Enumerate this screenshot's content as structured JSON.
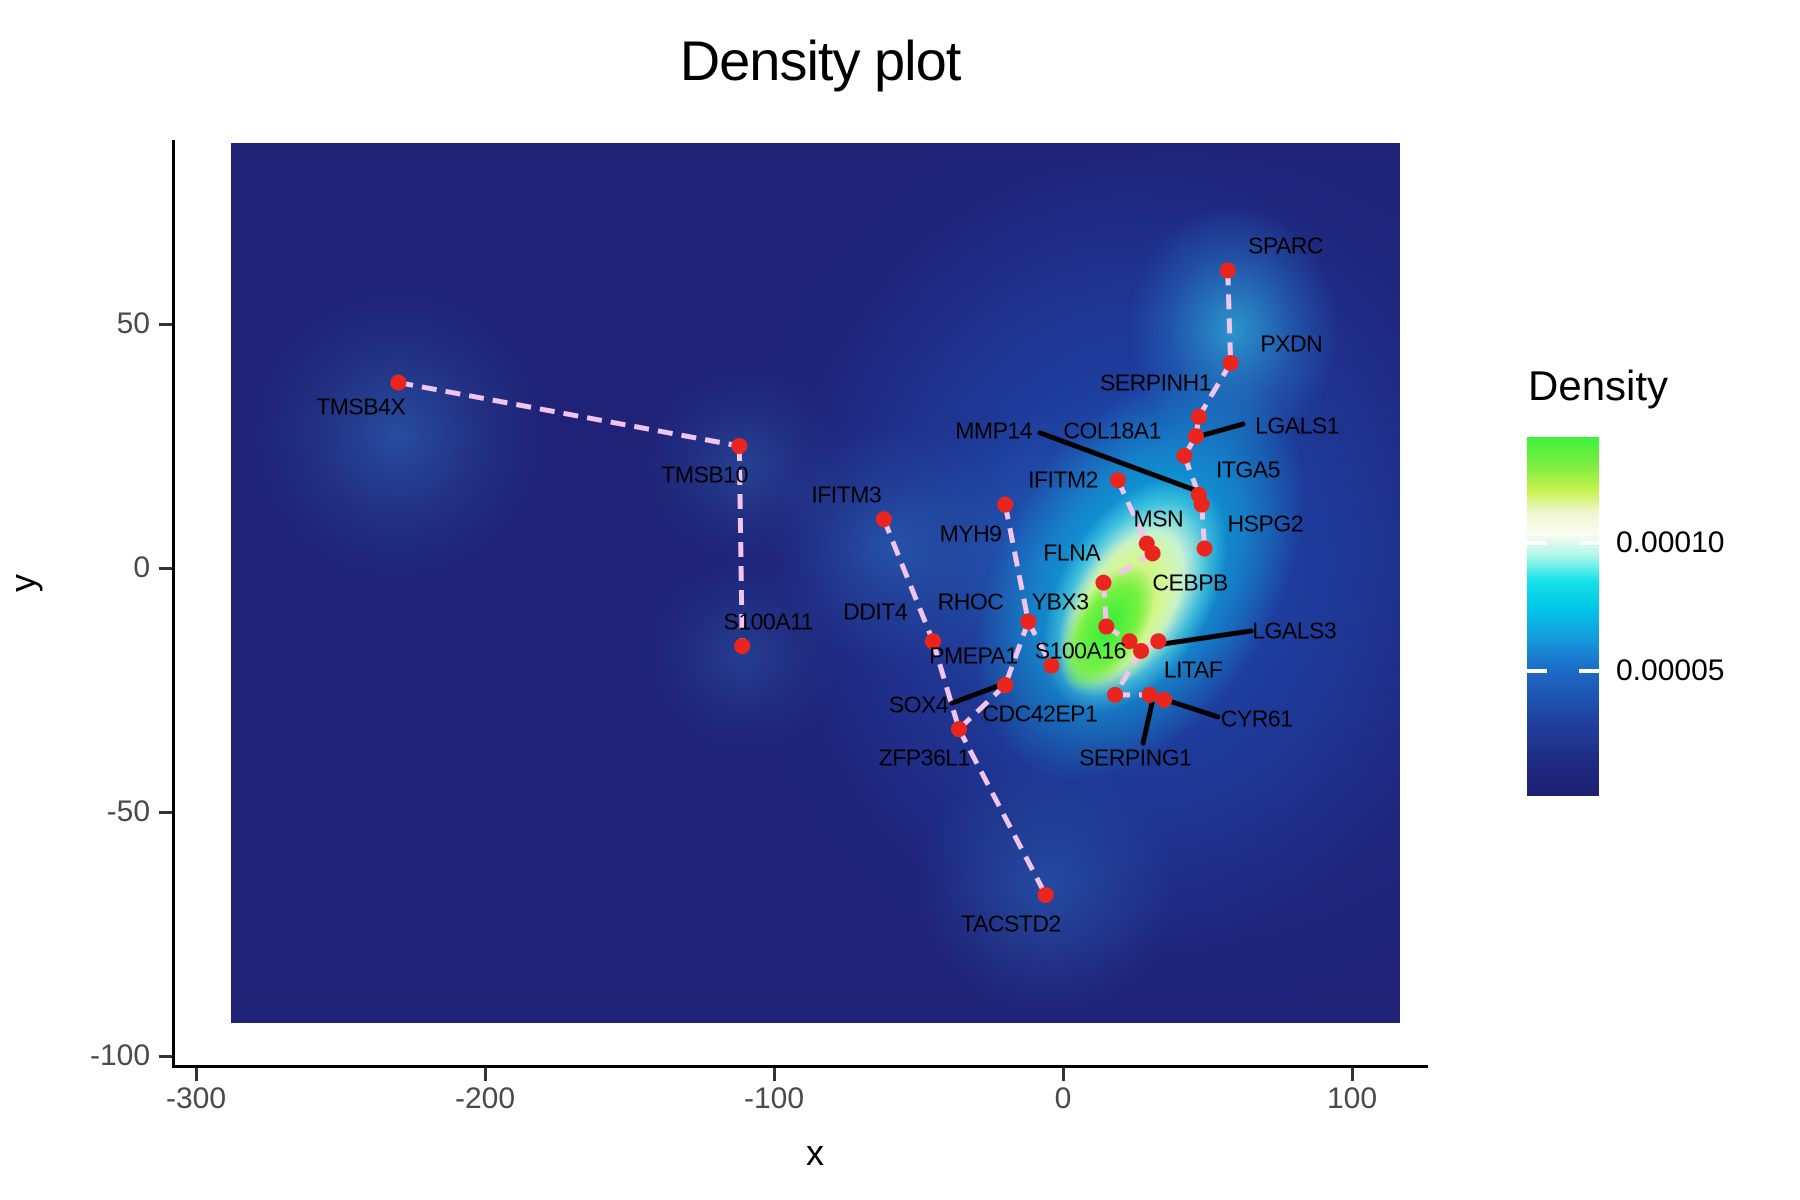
{
  "chart_data": {
    "type": "heatmap",
    "subtype": "2d-density-with-labeled-points",
    "title": "Density plot",
    "xlabel": "x",
    "ylabel": "y",
    "x_axis": {
      "ticks": [
        -300,
        -200,
        -100,
        0,
        100
      ],
      "range": [
        -288,
        117
      ]
    },
    "y_axis": {
      "ticks": [
        50,
        0,
        -50,
        -100
      ],
      "range": [
        -93,
        87
      ]
    },
    "legend": {
      "title": "Density",
      "tick_labels": [
        "0.00010",
        "0.00005"
      ],
      "tick_values": [
        0.0001,
        5e-05
      ],
      "bar_range": [
        0,
        0.00014
      ],
      "position": "right"
    },
    "colors": {
      "point": "#e9251e",
      "dashed_edge": "#f2c4f0",
      "leader_line": "#000000",
      "panel_background": "#1f2277",
      "density_low": "#1e2072",
      "density_mid": "#00c9e8",
      "density_high": "#3cf23c",
      "tick_text": "#4a4a4a"
    },
    "genes": [
      {
        "name": "TMSB4X",
        "point": [
          -230,
          38
        ],
        "label": [
          -243,
          33
        ]
      },
      {
        "name": "TMSB10",
        "point": [
          -112,
          25
        ],
        "label": [
          -124,
          19
        ]
      },
      {
        "name": "S100A11",
        "point": [
          -111,
          -16
        ],
        "label": [
          -102,
          -11
        ]
      },
      {
        "name": "IFITM3",
        "point": [
          -62,
          10
        ],
        "label": [
          -75,
          15
        ]
      },
      {
        "name": "DDIT4",
        "point": [
          -45,
          -15
        ],
        "label": [
          -65,
          -9
        ]
      },
      {
        "name": "RHOC",
        "point": [
          -45,
          -15
        ],
        "label": [
          -32,
          -7
        ]
      },
      {
        "name": "MYH9",
        "point": [
          -20,
          13
        ],
        "label": [
          -32,
          7
        ]
      },
      {
        "name": "PMEPA1",
        "point": [
          -20,
          -24
        ],
        "label": [
          -31,
          -18
        ]
      },
      {
        "name": "SOX4",
        "point": [
          -20,
          -24
        ],
        "label": [
          -50,
          -28
        ]
      },
      {
        "name": "CDC42EP1",
        "point": [
          -20,
          -24
        ],
        "label": [
          -8,
          -30
        ]
      },
      {
        "name": "ZFP36L1",
        "point": [
          -36,
          -33
        ],
        "label": [
          -48,
          -39
        ]
      },
      {
        "name": "TACSTD2",
        "point": [
          -6,
          -67
        ],
        "label": [
          -18,
          -73
        ]
      },
      {
        "name": "SPARC",
        "point": [
          57,
          61
        ],
        "label": [
          77,
          66
        ]
      },
      {
        "name": "PXDN",
        "point": [
          58,
          42
        ],
        "label": [
          79,
          46
        ]
      },
      {
        "name": "SERPINH1",
        "point": [
          47,
          31
        ],
        "label": [
          32,
          38
        ]
      },
      {
        "name": "LGALS1",
        "point": [
          46,
          27
        ],
        "label": [
          81,
          29
        ]
      },
      {
        "name": "ITGA5",
        "point": [
          42,
          23
        ],
        "label": [
          64,
          20
        ]
      },
      {
        "name": "MMP14",
        "point": [
          47,
          15
        ],
        "label": [
          -24,
          28
        ]
      },
      {
        "name": "COL18A1",
        "point": [
          48,
          13
        ],
        "label": [
          17,
          28
        ]
      },
      {
        "name": "HSPG2",
        "point": [
          49,
          4
        ],
        "label": [
          70,
          9
        ]
      },
      {
        "name": "IFITM2",
        "point": [
          19,
          18
        ],
        "label": [
          0,
          18
        ]
      },
      {
        "name": "MSN",
        "point": [
          29,
          5
        ],
        "label": [
          33,
          10
        ]
      },
      {
        "name": "CEBPB",
        "point": [
          31,
          3
        ],
        "label": [
          44,
          -3
        ]
      },
      {
        "name": "FLNA",
        "point": [
          14,
          -3
        ],
        "label": [
          3,
          3
        ]
      },
      {
        "name": "YBX3",
        "point": [
          -12,
          -11
        ],
        "label": [
          -1,
          -7
        ]
      },
      {
        "name": "S100A16",
        "point": [
          -4,
          -20
        ],
        "label": [
          6,
          -17
        ]
      },
      {
        "name": "LGALS3",
        "point": [
          33,
          -15
        ],
        "label": [
          80,
          -13
        ]
      },
      {
        "name": "LITAF",
        "point": [
          27,
          -17
        ],
        "label": [
          45,
          -21
        ]
      },
      {
        "name": "SERPING1",
        "point": [
          30,
          -26
        ],
        "label": [
          25,
          -39
        ]
      },
      {
        "name": "CYR61",
        "point": [
          35,
          -27
        ],
        "label": [
          67,
          -31
        ]
      }
    ],
    "extra_points": [
      {
        "name": "E1",
        "point": [
          15,
          -12
        ]
      },
      {
        "name": "E2",
        "point": [
          23,
          -15
        ]
      },
      {
        "name": "E3",
        "point": [
          18,
          -26
        ]
      }
    ],
    "dashed_edges": [
      [
        "TMSB4X",
        "TMSB10"
      ],
      [
        "TMSB10",
        "S100A11"
      ],
      [
        "IFITM3",
        "DDIT4"
      ],
      [
        "DDIT4",
        "ZFP36L1"
      ],
      [
        "PMEPA1",
        "ZFP36L1"
      ],
      [
        "YBX3",
        "PMEPA1"
      ],
      [
        "MYH9",
        "YBX3"
      ],
      [
        "YBX3",
        "S100A16"
      ],
      [
        "ZFP36L1",
        "TACSTD2"
      ],
      [
        "SPARC",
        "PXDN"
      ],
      [
        "PXDN",
        "SERPINH1"
      ],
      [
        "SERPINH1",
        "LGALS1"
      ],
      [
        "LGALS1",
        "ITGA5"
      ],
      [
        "ITGA5",
        "MMP14"
      ],
      [
        "MMP14",
        "COL18A1"
      ],
      [
        "COL18A1",
        "HSPG2"
      ],
      [
        "IFITM2",
        "MSN"
      ],
      [
        "MSN",
        "CEBPB"
      ],
      [
        "CEBPB",
        "FLNA"
      ],
      [
        "FLNA",
        "E1"
      ],
      [
        "E1",
        "E2"
      ],
      [
        "E2",
        "LITAF"
      ],
      [
        "LITAF",
        "LGALS3"
      ],
      [
        "LITAF",
        "E3"
      ],
      [
        "E3",
        "SERPING1"
      ],
      [
        "SERPING1",
        "CYR61"
      ]
    ],
    "leader_lines": [
      {
        "gene": "MMP14",
        "from": [
          -8,
          27.7
        ],
        "to": [
          46.4,
          15.8
        ]
      },
      {
        "gene": "LGALS1",
        "from": [
          62.3,
          29.5
        ],
        "to": [
          47.1,
          27
        ]
      },
      {
        "gene": "LGALS3",
        "from": [
          65.1,
          -12.9
        ],
        "to": [
          34.3,
          -15.6
        ]
      },
      {
        "gene": "SOX4",
        "from": [
          -38.4,
          -27.7
        ],
        "to": [
          -20.8,
          -23.8
        ]
      },
      {
        "gene": "SERPING1",
        "from": [
          27.7,
          -35.9
        ],
        "to": [
          30.8,
          -27.7
        ]
      },
      {
        "gene": "CYR61",
        "from": [
          53.6,
          -30.5
        ],
        "to": [
          37,
          -27.3
        ]
      }
    ]
  }
}
